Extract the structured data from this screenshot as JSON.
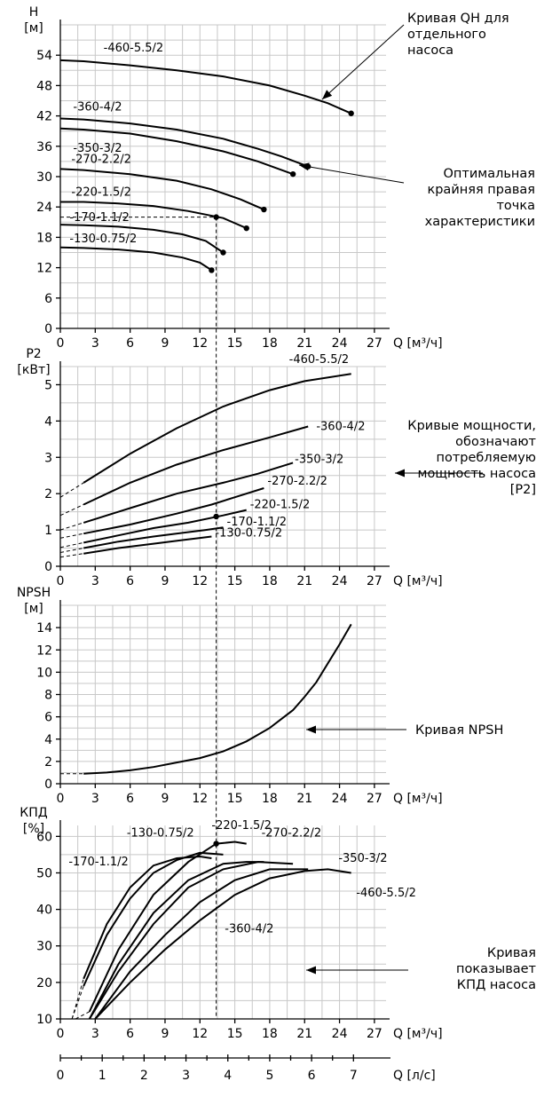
{
  "chart_data": [
    {
      "type": "line",
      "id": "qh",
      "ylabel": "H",
      "yunit": "[м]",
      "xlabel": "Q [м³/ч]",
      "xlim": [
        0,
        28
      ],
      "ylim": [
        0,
        60
      ],
      "xticks": [
        "0",
        "3",
        "6",
        "9",
        "12",
        "15",
        "18",
        "21",
        "24",
        "27"
      ],
      "yticks": [
        "0",
        "6",
        "12",
        "18",
        "24",
        "30",
        "36",
        "42",
        "48",
        "54"
      ],
      "series": [
        {
          "name": "-460-5.5/2",
          "x": [
            0,
            2,
            6,
            10,
            14,
            18,
            21,
            23,
            25
          ],
          "y": [
            53,
            52.8,
            52,
            51,
            49.8,
            48,
            46,
            44.5,
            42.5
          ]
        },
        {
          "name": "-360-4/2",
          "x": [
            0,
            2,
            6,
            10,
            14,
            17,
            19,
            21.3
          ],
          "y": [
            41.5,
            41.3,
            40.5,
            39.3,
            37.5,
            35.5,
            34,
            32
          ]
        },
        {
          "name": "-350-3/2",
          "x": [
            0,
            2,
            6,
            10,
            14,
            17,
            20
          ],
          "y": [
            39.5,
            39.3,
            38.5,
            37,
            35,
            33,
            30.5
          ]
        },
        {
          "name": "-270-2.2/2",
          "x": [
            0,
            2,
            6,
            10,
            13,
            15.5,
            17.5
          ],
          "y": [
            31.5,
            31.3,
            30.5,
            29.2,
            27.5,
            25.5,
            23.5
          ]
        },
        {
          "name": "-220-1.5/2",
          "x": [
            0,
            2,
            5,
            8,
            11,
            14,
            16
          ],
          "y": [
            25,
            25,
            24.7,
            24.2,
            23.2,
            21.8,
            19.8
          ]
        },
        {
          "name": "-170-1.1/2",
          "x": [
            0,
            2,
            5,
            8,
            10.5,
            12.5,
            14
          ],
          "y": [
            20.5,
            20.4,
            20.1,
            19.5,
            18.6,
            17.3,
            15
          ]
        },
        {
          "name": "-130-0.75/2",
          "x": [
            0,
            2,
            5,
            8,
            10.5,
            12,
            13
          ],
          "y": [
            16,
            15.9,
            15.6,
            15,
            14,
            13,
            11.5
          ]
        }
      ],
      "markers": [
        {
          "x": 25,
          "y": 42.5
        },
        {
          "x": 21.3,
          "y": 32
        },
        {
          "x": 20,
          "y": 30.5
        },
        {
          "x": 17.5,
          "y": 23.5
        },
        {
          "x": 16,
          "y": 19.8
        },
        {
          "x": 14,
          "y": 15
        },
        {
          "x": 13,
          "y": 11.5
        },
        {
          "x": 13.4,
          "y": 22
        }
      ]
    },
    {
      "type": "line",
      "id": "p2",
      "ylabel": "P2",
      "yunit": "[кВт]",
      "xlabel": "Q [м³/ч]",
      "xlim": [
        0,
        28
      ],
      "ylim": [
        0,
        5.5
      ],
      "xticks": [
        "0",
        "3",
        "6",
        "9",
        "12",
        "15",
        "18",
        "21",
        "24",
        "27"
      ],
      "yticks": [
        "0",
        "1",
        "2",
        "3",
        "4",
        "5"
      ],
      "series": [
        {
          "name": "-460-5.5/2",
          "x": [
            2,
            6,
            10,
            14,
            18,
            21,
            25
          ],
          "y": [
            2.3,
            3.1,
            3.8,
            4.4,
            4.85,
            5.1,
            5.3
          ]
        },
        {
          "name": "-360-4/2",
          "x": [
            2,
            6,
            10,
            14,
            18,
            21.3
          ],
          "y": [
            1.7,
            2.3,
            2.8,
            3.2,
            3.55,
            3.85
          ]
        },
        {
          "name": "-350-3/2",
          "x": [
            2,
            6,
            10,
            14,
            17,
            20
          ],
          "y": [
            1.2,
            1.6,
            2.0,
            2.3,
            2.55,
            2.85
          ]
        },
        {
          "name": "-270-2.2/2",
          "x": [
            2,
            6,
            10,
            13,
            15.5,
            17.5
          ],
          "y": [
            0.9,
            1.15,
            1.45,
            1.7,
            1.95,
            2.15
          ]
        },
        {
          "name": "-220-1.5/2",
          "x": [
            2,
            5,
            8,
            11,
            14,
            16
          ],
          "y": [
            0.65,
            0.85,
            1.05,
            1.2,
            1.4,
            1.55
          ]
        },
        {
          "name": "-170-1.1/2",
          "x": [
            2,
            5,
            8,
            10.5,
            12.5,
            14
          ],
          "y": [
            0.5,
            0.68,
            0.82,
            0.92,
            1.0,
            1.07
          ]
        },
        {
          "name": "-130-0.75/2",
          "x": [
            2,
            5,
            8,
            10.5,
            12,
            13
          ],
          "y": [
            0.35,
            0.5,
            0.62,
            0.72,
            0.78,
            0.82
          ]
        }
      ],
      "markers": [
        {
          "x": 13.4,
          "y": 1.37
        }
      ]
    },
    {
      "type": "line",
      "id": "npsh",
      "ylabel": "NPSH",
      "yunit": "[м]",
      "xlabel": "Q [м³/ч]",
      "xlim": [
        0,
        28
      ],
      "ylim": [
        0,
        16
      ],
      "xticks": [
        "0",
        "3",
        "6",
        "9",
        "12",
        "15",
        "18",
        "21",
        "24",
        "27"
      ],
      "yticks": [
        "0",
        "2",
        "4",
        "6",
        "8",
        "10",
        "12",
        "14"
      ],
      "series": [
        {
          "name": "NPSH",
          "x": [
            2,
            4,
            6,
            8,
            10,
            12,
            14,
            16,
            18,
            20,
            21,
            22,
            23,
            24,
            25
          ],
          "y": [
            0.9,
            1.0,
            1.2,
            1.5,
            1.9,
            2.3,
            2.9,
            3.8,
            5.0,
            6.6,
            7.8,
            9.1,
            10.8,
            12.5,
            14.3
          ]
        }
      ]
    },
    {
      "type": "line",
      "id": "eff",
      "ylabel": "КПД",
      "yunit": "[%]",
      "xlabel": "Q [м³/ч]",
      "xlim": [
        0,
        28
      ],
      "ylim": [
        10,
        63
      ],
      "xticks": [
        "0",
        "3",
        "6",
        "9",
        "12",
        "15",
        "18",
        "21",
        "24",
        "27"
      ],
      "yticks": [
        "10",
        "20",
        "30",
        "40",
        "50",
        "60"
      ],
      "x2label": "Q [л/с]",
      "x2ticks": [
        "0",
        "1",
        "2",
        "3",
        "4",
        "5",
        "6",
        "7"
      ],
      "series": [
        {
          "name": "-130-0.75/2",
          "x": [
            2,
            4,
            6,
            8,
            10,
            12,
            13
          ],
          "y": [
            21,
            36,
            46,
            52,
            54,
            54.5,
            54
          ]
        },
        {
          "name": "-170-1.1/2",
          "x": [
            2,
            4,
            6,
            8,
            10,
            12,
            14
          ],
          "y": [
            19,
            33,
            43,
            50,
            53.5,
            55.5,
            55
          ]
        },
        {
          "name": "-220-1.5/2",
          "x": [
            2.5,
            5,
            8,
            11,
            13.4,
            15,
            16
          ],
          "y": [
            12,
            29,
            44,
            53,
            58,
            58.5,
            58
          ]
        },
        {
          "name": "-270-2.2/2",
          "x": [
            2.5,
            5,
            8,
            11,
            14,
            16,
            17.5
          ],
          "y": [
            10,
            25,
            39,
            48,
            52.5,
            53,
            53
          ]
        },
        {
          "name": "-350-3/2",
          "x": [
            2.5,
            5,
            8,
            11,
            14,
            17,
            20
          ],
          "y": [
            10,
            23,
            36,
            46,
            51,
            53,
            52.5
          ]
        },
        {
          "name": "-360-4/2",
          "x": [
            3,
            6,
            9,
            12,
            15,
            18,
            21.3
          ],
          "y": [
            10,
            23,
            33,
            42,
            48,
            51,
            51
          ]
        },
        {
          "name": "-460-5.5/2",
          "x": [
            3,
            6,
            9,
            12,
            15,
            18,
            21,
            23,
            25
          ],
          "y": [
            10,
            20,
            29,
            37,
            44,
            48.5,
            50.5,
            51,
            50
          ]
        }
      ],
      "markers": [
        {
          "x": 13.4,
          "y": 58
        }
      ]
    }
  ],
  "annotations": {
    "qh_curve": [
      "Кривая QH для",
      "отдельного",
      "насоса"
    ],
    "best_point": [
      "Оптимальная",
      "крайняя правая",
      "точка",
      "характеристики"
    ],
    "power_curves": [
      "Кривые мощности,",
      "обозначают",
      "потребляемую",
      "мощность насоса",
      "[P2]"
    ],
    "npsh_curve": [
      "Кривая NPSH"
    ],
    "eff_curve": [
      "Кривая",
      "показывает",
      "КПД насоса"
    ]
  }
}
